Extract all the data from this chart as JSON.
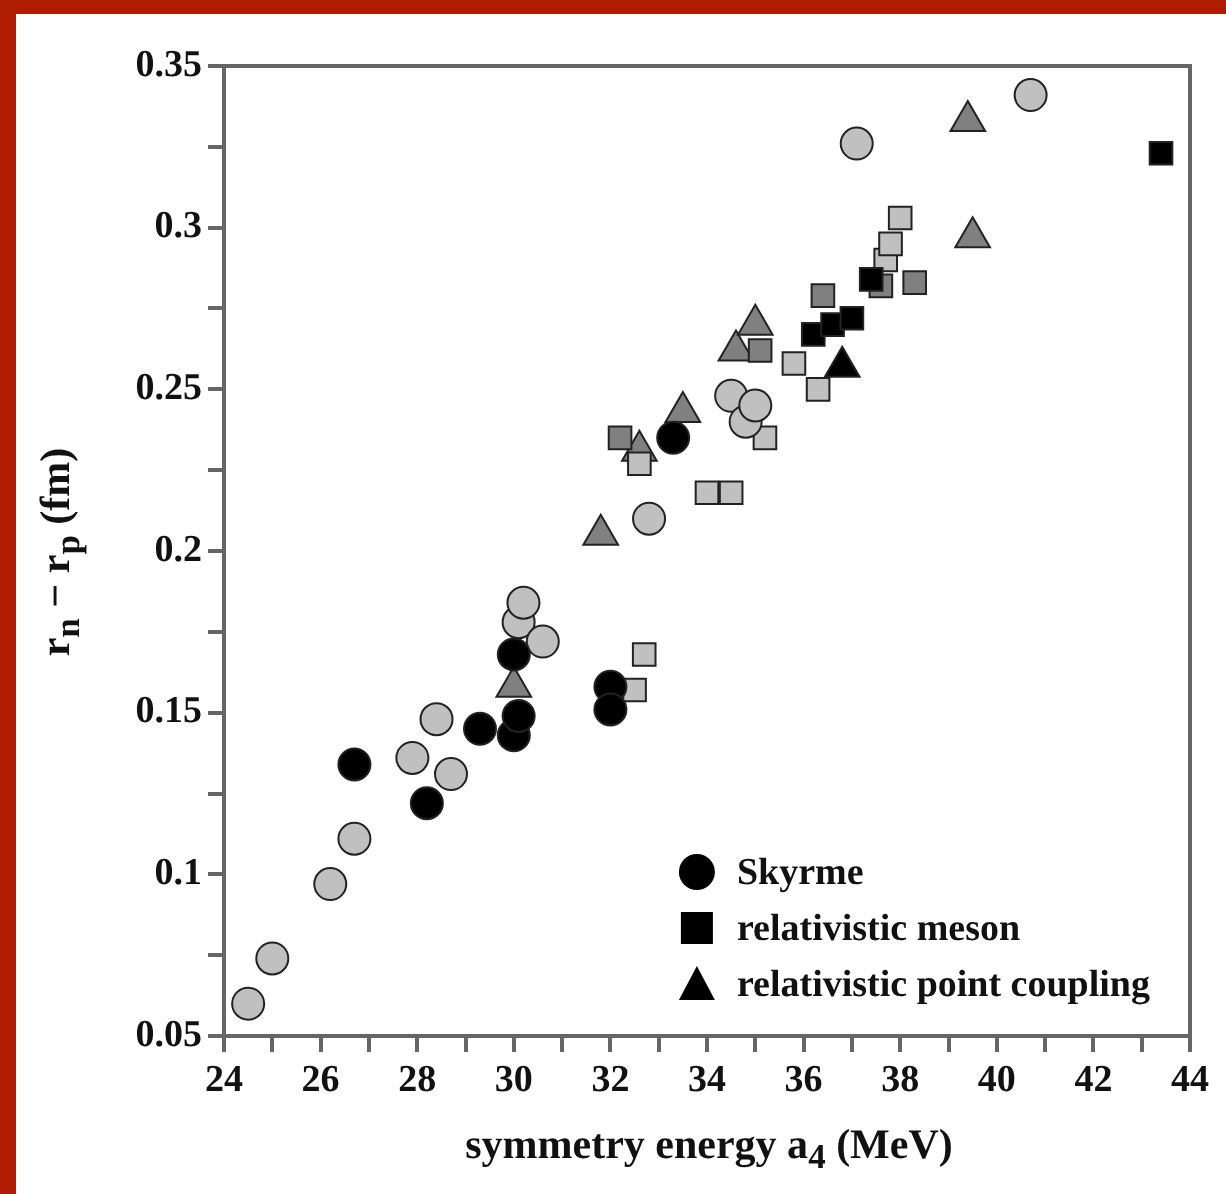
{
  "chart_data": {
    "type": "scatter",
    "xlabel": "symmetry energy a$_{4}$ (MeV)",
    "ylabel": "r$_{n}$ − r$_{p}$ (fm)",
    "xlim": [
      24,
      44
    ],
    "xticks": [
      24,
      {
        "value": 25,
        "label": null
      },
      26,
      {
        "value": 27,
        "label": null
      },
      28,
      {
        "value": 29,
        "label": null
      },
      30,
      {
        "value": 31,
        "label": null
      },
      32,
      {
        "value": 33,
        "label": null
      },
      34,
      {
        "value": 35,
        "label": null
      },
      36,
      {
        "value": 37,
        "label": null
      },
      38,
      {
        "value": 39,
        "label": null
      },
      40,
      {
        "value": 41,
        "label": null
      },
      42,
      {
        "value": 43,
        "label": null
      },
      44
    ],
    "ylim": [
      0.05,
      0.35
    ],
    "yticks": [
      0.05,
      {
        "value": 0.075,
        "label": null
      },
      0.1,
      {
        "value": 0.125,
        "label": null
      },
      0.15,
      {
        "value": 0.175,
        "label": null
      },
      0.2,
      {
        "value": 0.225,
        "label": null
      },
      0.25,
      {
        "value": 0.275,
        "label": null
      },
      0.3,
      {
        "value": 0.325,
        "label": null
      },
      0.35
    ],
    "grid": false,
    "legend": "bottom right",
    "series": [
      {
        "name": "Skyrme",
        "color": "#000000",
        "marker": "circle",
        "x": [
          26.7,
          28.2,
          29.3,
          30.0,
          30.0,
          30.1,
          32.0,
          32.0,
          33.3
        ],
        "values": [
          0.134,
          0.122,
          0.145,
          0.168,
          0.143,
          0.149,
          0.158,
          0.151,
          0.235
        ]
      },
      {
        "color": "#c0c0c0",
        "marker": "circle",
        "x": [
          24.5,
          25.0,
          26.2,
          26.7,
          27.9,
          28.4,
          28.7,
          30.1,
          30.2,
          30.6,
          32.8,
          34.5,
          34.8,
          35.0,
          37.1,
          40.7
        ],
        "values": [
          0.06,
          0.074,
          0.097,
          0.111,
          0.136,
          0.148,
          0.131,
          0.178,
          0.184,
          0.172,
          0.21,
          0.248,
          0.24,
          0.245,
          0.326,
          0.341
        ]
      },
      {
        "name": "relativistic meson",
        "color": "#000000",
        "marker": "square",
        "x": [
          36.2,
          36.6,
          37.0,
          37.4,
          43.4
        ],
        "values": [
          0.267,
          0.27,
          0.272,
          0.284,
          0.323
        ]
      },
      {
        "color": "#808080",
        "marker": "square",
        "x": [
          32.2,
          35.1,
          36.4,
          37.6,
          38.3
        ],
        "values": [
          0.235,
          0.262,
          0.279,
          0.282,
          0.283
        ]
      },
      {
        "color": "#c0c0c0",
        "marker": "square",
        "x": [
          32.5,
          32.7,
          32.6,
          34.0,
          34.5,
          35.2,
          35.8,
          36.3,
          37.7,
          37.8,
          38.0
        ],
        "values": [
          0.157,
          0.168,
          0.227,
          0.218,
          0.218,
          0.235,
          0.258,
          0.25,
          0.29,
          0.295,
          0.303
        ]
      },
      {
        "name": "relativistic point coupling",
        "color": "#000000",
        "marker": "triangle",
        "x": [
          36.8
        ],
        "values": [
          0.257
        ]
      },
      {
        "color": "#808080",
        "marker": "triangle",
        "x": [
          30.0,
          31.8,
          32.6,
          33.5,
          34.6,
          35.0,
          39.4,
          39.5
        ],
        "values": [
          0.158,
          0.205,
          0.231,
          0.243,
          0.262,
          0.27,
          0.333,
          0.297
        ]
      }
    ]
  }
}
